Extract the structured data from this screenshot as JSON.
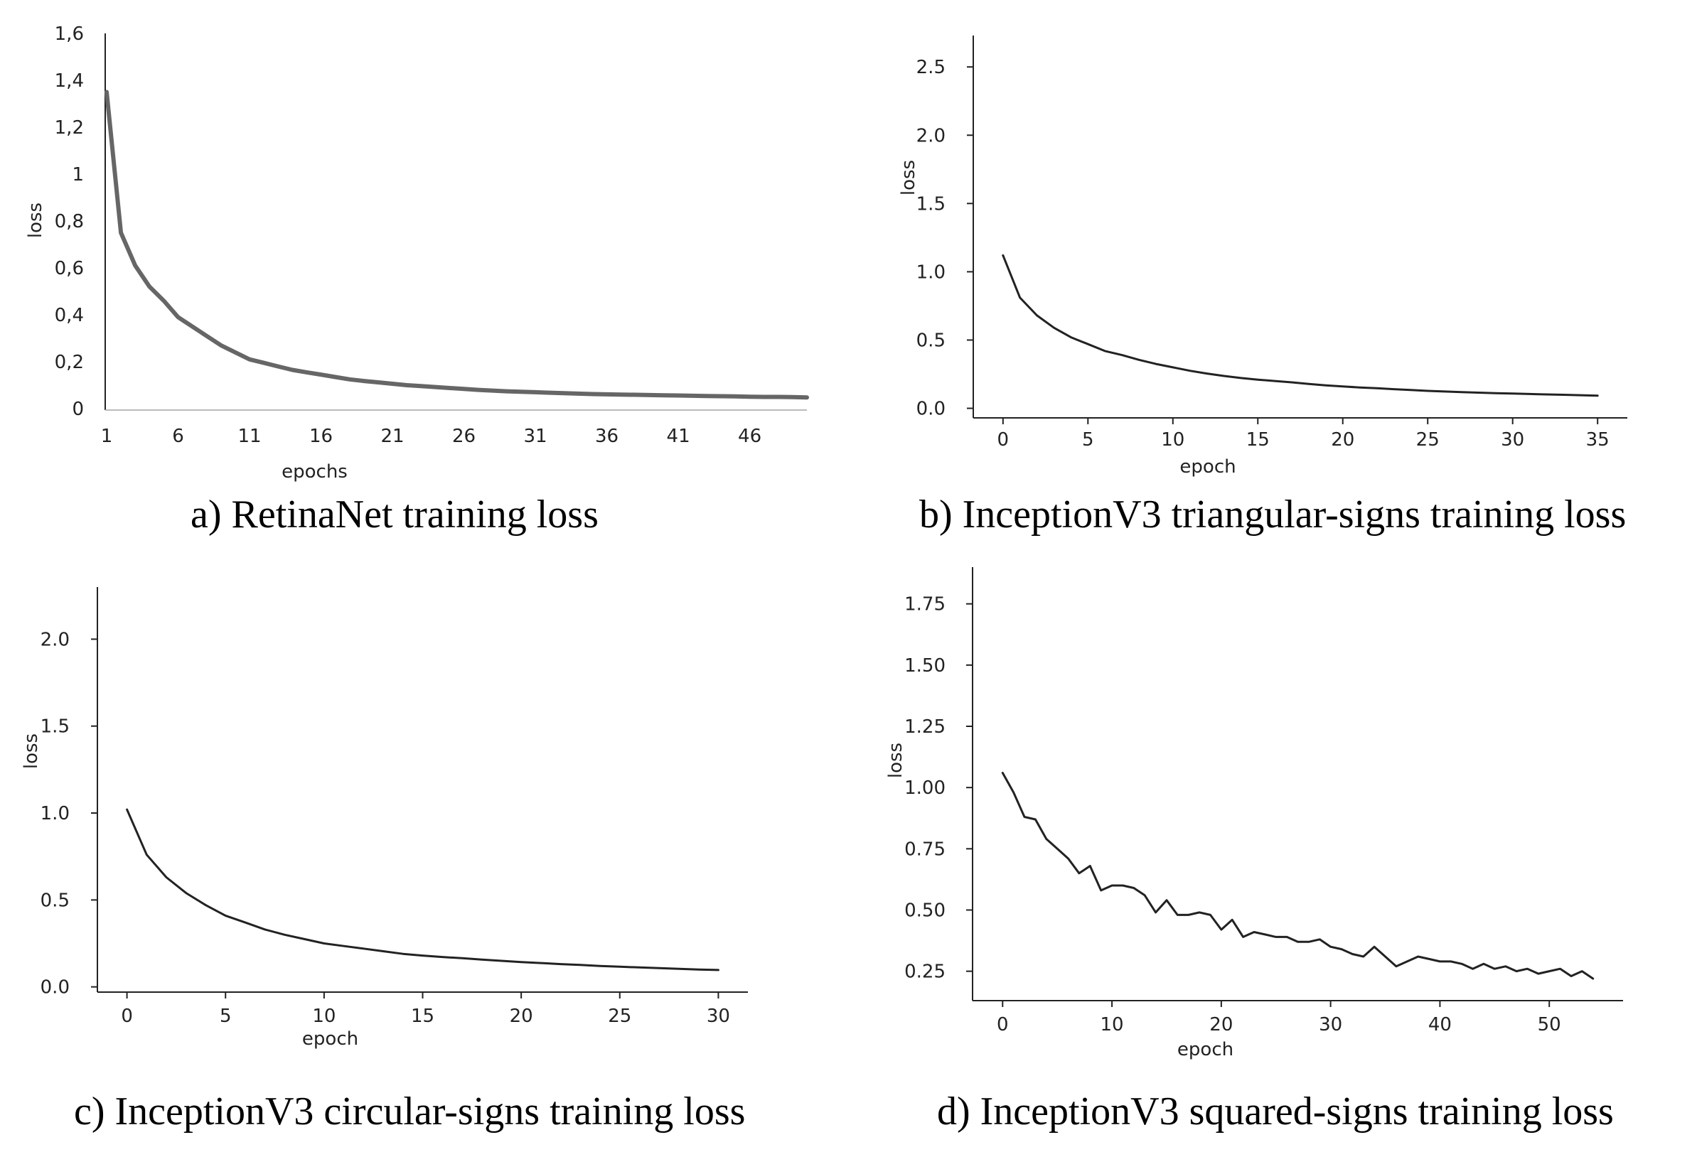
{
  "figure": {
    "background": "#ffffff"
  },
  "chart_data": [
    {
      "type": "line",
      "title": "",
      "xlabel": "epochs",
      "ylabel": "loss",
      "caption": "a) RetinaNet training loss",
      "xlim": [
        1,
        50
      ],
      "ylim": [
        0,
        1.6
      ],
      "xticks": [
        1,
        6,
        11,
        16,
        21,
        26,
        31,
        36,
        41,
        46
      ],
      "xtick_labels": [
        "1",
        "6",
        "11",
        "16",
        "21",
        "26",
        "31",
        "36",
        "41",
        "46"
      ],
      "yticks": [
        0,
        0.2,
        0.4,
        0.6,
        0.8,
        1,
        1.2,
        1.4,
        1.6
      ],
      "ytick_labels": [
        "0",
        "0,2",
        "0,4",
        "0,6",
        "0,8",
        "1",
        "1,2",
        "1,4",
        "1,6"
      ],
      "grid": false,
      "line_color": "#666666",
      "series": [
        {
          "name": "loss",
          "x": [
            1,
            2,
            3,
            4,
            5,
            6,
            7,
            8,
            9,
            10,
            11,
            12,
            13,
            14,
            15,
            16,
            17,
            18,
            19,
            20,
            21,
            22,
            23,
            24,
            25,
            26,
            27,
            28,
            29,
            30,
            31,
            32,
            33,
            34,
            35,
            36,
            37,
            38,
            39,
            40,
            41,
            42,
            43,
            44,
            45,
            46,
            47,
            48,
            49,
            50
          ],
          "values": [
            1.35,
            0.75,
            0.61,
            0.52,
            0.46,
            0.39,
            0.35,
            0.31,
            0.27,
            0.24,
            0.21,
            0.195,
            0.18,
            0.165,
            0.155,
            0.145,
            0.135,
            0.125,
            0.118,
            0.112,
            0.106,
            0.1,
            0.096,
            0.092,
            0.088,
            0.084,
            0.08,
            0.077,
            0.074,
            0.072,
            0.07,
            0.068,
            0.066,
            0.064,
            0.062,
            0.061,
            0.06,
            0.059,
            0.058,
            0.057,
            0.056,
            0.055,
            0.054,
            0.053,
            0.052,
            0.051,
            0.05,
            0.05,
            0.049,
            0.048
          ]
        }
      ]
    },
    {
      "type": "line",
      "title": "",
      "xlabel": "epoch",
      "ylabel": "loss",
      "caption": "b) InceptionV3 triangular-signs training loss",
      "xlim": [
        -1.75,
        36.75
      ],
      "ylim": [
        -0.07,
        2.73
      ],
      "xticks": [
        0,
        5,
        10,
        15,
        20,
        25,
        30,
        35
      ],
      "xtick_labels": [
        "0",
        "5",
        "10",
        "15",
        "20",
        "25",
        "30",
        "35"
      ],
      "yticks": [
        0,
        0.5,
        1.0,
        1.5,
        2.0,
        2.5
      ],
      "ytick_labels": [
        "0.0",
        "0.5",
        "1.0",
        "1.5",
        "2.0",
        "2.5"
      ],
      "grid": false,
      "line_color": "#222222",
      "series": [
        {
          "name": "loss",
          "x": [
            0,
            1,
            2,
            3,
            4,
            5,
            6,
            7,
            8,
            9,
            10,
            11,
            12,
            13,
            14,
            15,
            16,
            17,
            18,
            19,
            20,
            21,
            22,
            23,
            24,
            25,
            26,
            27,
            28,
            29,
            30,
            31,
            32,
            33,
            34,
            35
          ],
          "values": [
            1.12,
            0.81,
            0.68,
            0.59,
            0.52,
            0.47,
            0.42,
            0.39,
            0.355,
            0.325,
            0.3,
            0.275,
            0.255,
            0.237,
            0.222,
            0.21,
            0.2,
            0.19,
            0.178,
            0.168,
            0.16,
            0.153,
            0.147,
            0.14,
            0.134,
            0.128,
            0.123,
            0.119,
            0.115,
            0.111,
            0.108,
            0.105,
            0.102,
            0.099,
            0.096,
            0.093
          ]
        }
      ]
    },
    {
      "type": "line",
      "title": "",
      "xlabel": "epoch",
      "ylabel": "loss",
      "caption": "c) InceptionV3 circular-signs training loss",
      "xlim": [
        -1.5,
        31.5
      ],
      "ylim": [
        -0.03,
        2.3
      ],
      "xticks": [
        0,
        5,
        10,
        15,
        20,
        25,
        30
      ],
      "xtick_labels": [
        "0",
        "5",
        "10",
        "15",
        "20",
        "25",
        "30"
      ],
      "yticks": [
        0,
        0.5,
        1.0,
        1.5,
        2.0
      ],
      "ytick_labels": [
        "0.0",
        "0.5",
        "1.0",
        "1.5",
        "2.0"
      ],
      "grid": false,
      "line_color": "#222222",
      "series": [
        {
          "name": "loss",
          "x": [
            0,
            1,
            2,
            3,
            4,
            5,
            6,
            7,
            8,
            9,
            10,
            11,
            12,
            13,
            14,
            15,
            16,
            17,
            18,
            19,
            20,
            21,
            22,
            23,
            24,
            25,
            26,
            27,
            28,
            29,
            30
          ],
          "values": [
            1.02,
            0.76,
            0.63,
            0.54,
            0.47,
            0.41,
            0.37,
            0.33,
            0.3,
            0.275,
            0.25,
            0.235,
            0.22,
            0.205,
            0.19,
            0.18,
            0.172,
            0.165,
            0.157,
            0.15,
            0.143,
            0.137,
            0.131,
            0.126,
            0.12,
            0.116,
            0.112,
            0.108,
            0.104,
            0.1,
            0.097
          ]
        }
      ]
    },
    {
      "type": "line",
      "title": "",
      "xlabel": "epoch",
      "ylabel": "loss",
      "caption": "d) InceptionV3 squared-signs training loss",
      "xlim": [
        -2.75,
        56.75
      ],
      "ylim": [
        0.13,
        1.9
      ],
      "xticks": [
        0,
        10,
        20,
        30,
        40,
        50
      ],
      "xtick_labels": [
        "0",
        "10",
        "20",
        "30",
        "40",
        "50"
      ],
      "yticks": [
        0.25,
        0.5,
        0.75,
        1.0,
        1.25,
        1.5,
        1.75
      ],
      "ytick_labels": [
        "0.25",
        "0.50",
        "0.75",
        "1.00",
        "1.25",
        "1.50",
        "1.75"
      ],
      "grid": false,
      "line_color": "#222222",
      "series": [
        {
          "name": "loss",
          "x": [
            0,
            1,
            2,
            3,
            4,
            5,
            6,
            7,
            8,
            9,
            10,
            11,
            12,
            13,
            14,
            15,
            16,
            17,
            18,
            19,
            20,
            21,
            22,
            23,
            24,
            25,
            26,
            27,
            28,
            29,
            30,
            31,
            32,
            33,
            34,
            35,
            36,
            37,
            38,
            39,
            40,
            41,
            42,
            43,
            44,
            45,
            46,
            47,
            48,
            49,
            50,
            51,
            52,
            53,
            54
          ],
          "values": [
            1.06,
            0.98,
            0.88,
            0.87,
            0.79,
            0.75,
            0.71,
            0.65,
            0.68,
            0.58,
            0.6,
            0.6,
            0.59,
            0.56,
            0.49,
            0.54,
            0.48,
            0.48,
            0.49,
            0.48,
            0.42,
            0.46,
            0.39,
            0.41,
            0.4,
            0.39,
            0.39,
            0.37,
            0.37,
            0.38,
            0.35,
            0.34,
            0.32,
            0.31,
            0.35,
            0.31,
            0.27,
            0.29,
            0.31,
            0.3,
            0.29,
            0.29,
            0.28,
            0.26,
            0.28,
            0.26,
            0.27,
            0.25,
            0.26,
            0.24,
            0.25,
            0.26,
            0.23,
            0.25,
            0.22
          ]
        }
      ]
    }
  ]
}
